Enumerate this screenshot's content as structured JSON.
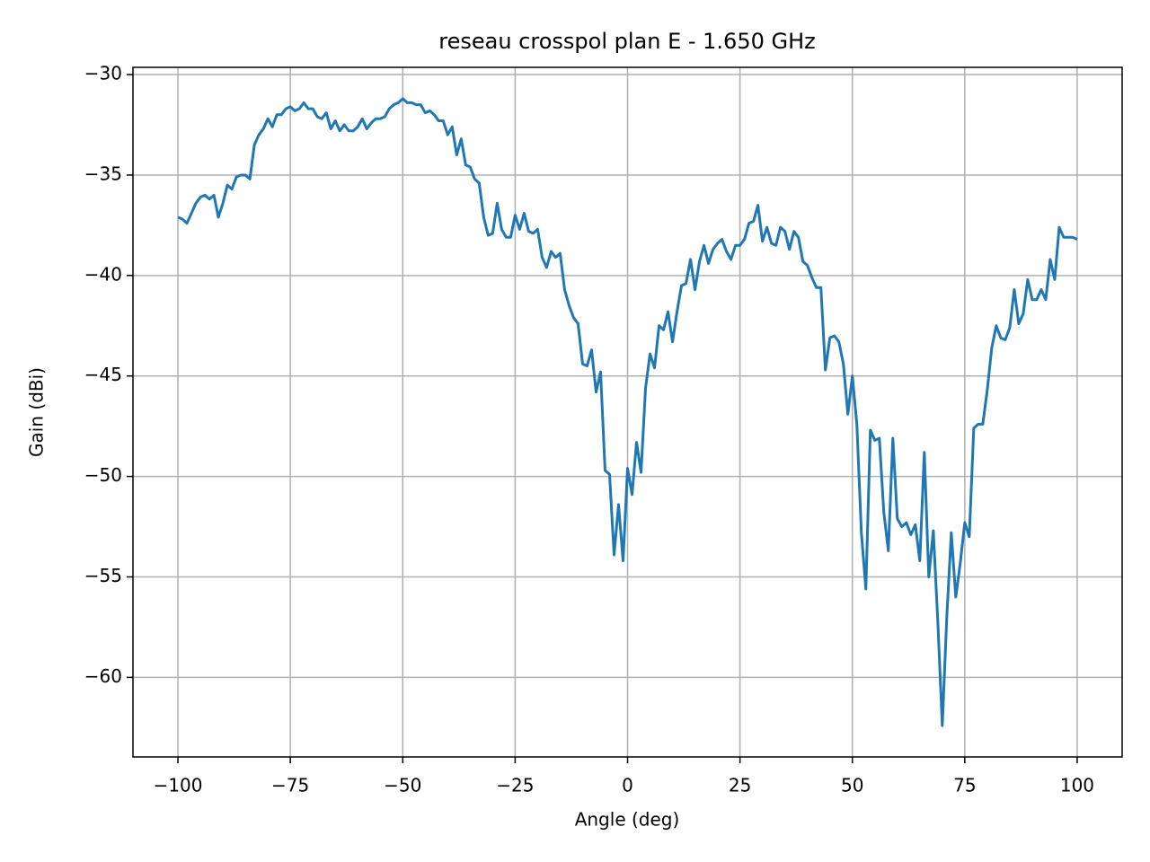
{
  "chart_data": {
    "type": "line",
    "title": "reseau crosspol plan E - 1.650 GHz",
    "x_label": "Angle (deg)",
    "y_label": "Gain (dBi)",
    "grid": true,
    "xlim": [
      -110,
      110
    ],
    "ylim": [
      -63.96,
      -29.64
    ],
    "xticks": [
      {
        "value": -100,
        "label": "−100"
      },
      {
        "value": -75,
        "label": "−75"
      },
      {
        "value": -50,
        "label": "−50"
      },
      {
        "value": -25,
        "label": "−25"
      },
      0,
      25,
      50,
      75,
      100
    ],
    "yticks": [
      {
        "value": -60,
        "label": "−60"
      },
      {
        "value": -55,
        "label": "−55"
      },
      {
        "value": -50,
        "label": "−50"
      },
      {
        "value": -45,
        "label": "−45"
      },
      {
        "value": -40,
        "label": "−40"
      },
      {
        "value": -35,
        "label": "−35"
      },
      {
        "value": -30,
        "label": "−30"
      }
    ],
    "x": [
      -100,
      -99,
      -98,
      -97,
      -96,
      -95,
      -94,
      -93,
      -92,
      -91,
      -90,
      -89,
      -88,
      -87,
      -86,
      -85,
      -84,
      -83,
      -82,
      -81,
      -80,
      -79,
      -78,
      -77,
      -76,
      -75,
      -74,
      -73,
      -72,
      -71,
      -70,
      -69,
      -68,
      -67,
      -66,
      -65,
      -64,
      -63,
      -62,
      -61,
      -60,
      -59,
      -58,
      -57,
      -56,
      -55,
      -54,
      -53,
      -52,
      -51,
      -50,
      -49,
      -48,
      -47,
      -46,
      -45,
      -44,
      -43,
      -42,
      -41,
      -40,
      -39,
      -38,
      -37,
      -36,
      -35,
      -34,
      -33,
      -32,
      -31,
      -30,
      -29,
      -28,
      -27,
      -26,
      -25,
      -24,
      -23,
      -22,
      -21,
      -20,
      -19,
      -18,
      -17,
      -16,
      -15,
      -14,
      -13,
      -12,
      -11,
      -10,
      -9,
      -8,
      -7,
      -6,
      -5,
      -4,
      -3,
      -2,
      -1,
      0,
      1,
      2,
      3,
      4,
      5,
      6,
      7,
      8,
      9,
      10,
      11,
      12,
      13,
      14,
      15,
      16,
      17,
      18,
      19,
      20,
      21,
      22,
      23,
      24,
      25,
      26,
      27,
      28,
      29,
      30,
      31,
      32,
      33,
      34,
      35,
      36,
      37,
      38,
      39,
      40,
      41,
      42,
      43,
      44,
      45,
      46,
      47,
      48,
      49,
      50,
      51,
      52,
      53,
      54,
      55,
      56,
      57,
      58,
      59,
      60,
      61,
      62,
      63,
      64,
      65,
      66,
      67,
      68,
      69,
      70,
      71,
      72,
      73,
      74,
      75,
      76,
      77,
      78,
      79,
      80,
      81,
      82,
      83,
      84,
      85,
      86,
      87,
      88,
      89,
      90,
      91,
      92,
      93,
      94,
      95,
      96,
      97,
      98,
      99,
      100
    ],
    "series": [
      {
        "color": "#1f77b4",
        "values": [
          -37.1,
          -37.2,
          -37.4,
          -36.9,
          -36.4,
          -36.1,
          -36.0,
          -36.2,
          -36.0,
          -37.1,
          -36.4,
          -35.5,
          -35.7,
          -35.1,
          -35.0,
          -35.0,
          -35.2,
          -33.5,
          -33.0,
          -32.7,
          -32.2,
          -32.6,
          -32.0,
          -32.0,
          -31.7,
          -31.6,
          -31.8,
          -31.7,
          -31.4,
          -31.7,
          -31.7,
          -32.1,
          -32.2,
          -31.9,
          -32.7,
          -32.3,
          -32.8,
          -32.5,
          -32.8,
          -32.8,
          -32.6,
          -32.2,
          -32.7,
          -32.4,
          -32.2,
          -32.2,
          -32.1,
          -31.7,
          -31.5,
          -31.4,
          -31.2,
          -31.4,
          -31.4,
          -31.5,
          -31.5,
          -31.9,
          -31.8,
          -32.0,
          -32.3,
          -32.3,
          -33.0,
          -32.6,
          -34.0,
          -33.2,
          -34.5,
          -34.6,
          -35.2,
          -35.4,
          -37.1,
          -38.0,
          -37.9,
          -36.4,
          -37.7,
          -38.1,
          -38.1,
          -37.0,
          -37.7,
          -36.9,
          -37.8,
          -37.9,
          -37.7,
          -39.1,
          -39.6,
          -38.8,
          -39.1,
          -38.9,
          -40.7,
          -41.5,
          -42.1,
          -42.4,
          -44.4,
          -44.5,
          -43.7,
          -45.8,
          -44.8,
          -49.7,
          -49.9,
          -53.9,
          -51.4,
          -54.2,
          -49.6,
          -50.9,
          -48.3,
          -49.8,
          -45.6,
          -43.9,
          -44.6,
          -42.5,
          -42.7,
          -41.8,
          -43.3,
          -41.8,
          -40.5,
          -40.4,
          -39.2,
          -40.7,
          -39.3,
          -38.5,
          -39.4,
          -38.7,
          -38.4,
          -38.2,
          -38.8,
          -39.2,
          -38.5,
          -38.5,
          -38.2,
          -37.4,
          -37.3,
          -36.5,
          -38.3,
          -37.6,
          -38.4,
          -38.5,
          -37.6,
          -37.8,
          -38.7,
          -37.8,
          -38.1,
          -39.3,
          -39.5,
          -40.1,
          -40.6,
          -40.6,
          -44.7,
          -43.1,
          -43.0,
          -43.3,
          -44.4,
          -46.9,
          -45.0,
          -47.4,
          -52.8,
          -55.6,
          -47.7,
          -48.2,
          -48.1,
          -51.8,
          -53.7,
          -48.1,
          -52.1,
          -52.5,
          -52.3,
          -52.9,
          -52.4,
          -54.2,
          -48.8,
          -55.0,
          -52.7,
          -57.2,
          -62.4,
          -57.0,
          -52.8,
          -56.0,
          -54.3,
          -52.3,
          -53.0,
          -47.6,
          -47.4,
          -47.4,
          -45.7,
          -43.6,
          -42.5,
          -43.1,
          -43.2,
          -42.6,
          -40.7,
          -42.4,
          -41.9,
          -40.2,
          -41.2,
          -41.2,
          -40.7,
          -41.2,
          -39.2,
          -40.2,
          -37.6,
          -38.1,
          -38.1,
          -38.1,
          -38.2
        ]
      }
    ]
  }
}
